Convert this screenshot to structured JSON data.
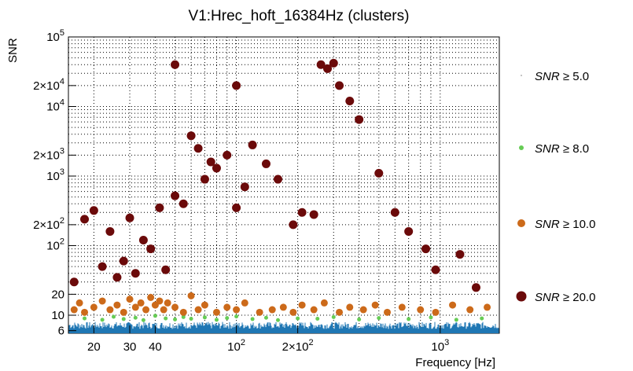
{
  "chart_data": {
    "type": "scatter",
    "title": "V1:Hrec_hoft_16384Hz (clusters)",
    "xlabel": "Frequency [Hz]",
    "ylabel": "SNR",
    "xscale": "log",
    "yscale": "log",
    "xlim": [
      15,
      1950
    ],
    "ylim": [
      5.5,
      100000
    ],
    "grid": true,
    "legend_position": "right",
    "x_ticks": [
      {
        "value": 20,
        "label": "20"
      },
      {
        "value": 30,
        "label": "30"
      },
      {
        "value": 40,
        "label": "40"
      },
      {
        "value": 100,
        "label": "10",
        "exp": "2"
      },
      {
        "value": 200,
        "label": "2×10",
        "exp": "2"
      },
      {
        "value": 1000,
        "label": "10",
        "exp": "3"
      }
    ],
    "y_ticks": [
      {
        "value": 6,
        "label": "6"
      },
      {
        "value": 10,
        "label": "10"
      },
      {
        "value": 20,
        "label": "20"
      },
      {
        "value": 100,
        "label": "10",
        "exp": "2"
      },
      {
        "value": 200,
        "label": "2×10",
        "exp": "2"
      },
      {
        "value": 1000,
        "label": "10",
        "exp": "3"
      },
      {
        "value": 2000,
        "label": "2×10",
        "exp": "3"
      },
      {
        "value": 10000,
        "label": "10",
        "exp": "4"
      },
      {
        "value": 20000,
        "label": "2×10",
        "exp": "4"
      },
      {
        "value": 100000,
        "label": "10",
        "exp": "5"
      }
    ],
    "series": [
      {
        "name": "SNR ≥ 5.0",
        "color": "#1f77b4",
        "legend_color": "#ffffff",
        "description_points": "dense band of clusters between SNR 5 and 8 across 15–1950 Hz",
        "band": [
          5.5,
          8.0
        ]
      },
      {
        "name": "SNR ≥ 8.0",
        "color": "#66cc55",
        "x": [
          18,
          22,
          25,
          28,
          32,
          35,
          40,
          45,
          50,
          55,
          60,
          70,
          80,
          90,
          100,
          120,
          140,
          160,
          200,
          250,
          300,
          400,
          500,
          700,
          900,
          1200,
          1600
        ],
        "y": [
          9,
          8.6,
          9.5,
          8.8,
          9.2,
          8.5,
          9.8,
          9,
          8.7,
          9.4,
          8.9,
          9.3,
          8.6,
          9.1,
          9.6,
          8.8,
          9.2,
          8.5,
          9,
          8.9,
          9.4,
          8.7,
          9.1,
          8.8,
          9.3,
          8.6,
          9
        ]
      },
      {
        "name": "SNR ≥ 10.0",
        "color": "#cc6a1a",
        "x": [
          16,
          17,
          18,
          20,
          22,
          24,
          26,
          28,
          30,
          32,
          34,
          36,
          38,
          40,
          42,
          44,
          46,
          50,
          55,
          60,
          65,
          70,
          80,
          90,
          100,
          110,
          130,
          150,
          170,
          190,
          210,
          240,
          270,
          320,
          360,
          420,
          480,
          550,
          650,
          800,
          950,
          1150,
          1400,
          1700
        ],
        "y": [
          12,
          15,
          11,
          13,
          16,
          12,
          14,
          11,
          17,
          13,
          15,
          12,
          18,
          14,
          16,
          12,
          15,
          13,
          11,
          19,
          12,
          14,
          11,
          13,
          12,
          15,
          11,
          12,
          13,
          11,
          14,
          12,
          15,
          11,
          13,
          12,
          14,
          11,
          13,
          12,
          11,
          14,
          12,
          13
        ]
      },
      {
        "name": "SNR ≥ 20.0",
        "color": "#6b0a0a",
        "x": [
          16,
          18,
          20,
          22,
          24,
          26,
          28,
          30,
          32,
          35,
          38,
          42,
          45,
          50,
          50,
          55,
          60,
          65,
          70,
          75,
          80,
          90,
          100,
          100,
          110,
          120,
          140,
          160,
          190,
          210,
          240,
          260,
          280,
          300,
          320,
          360,
          400,
          500,
          600,
          700,
          850,
          950,
          1250,
          1500
        ],
        "y": [
          30,
          240,
          320,
          50,
          160,
          35,
          60,
          250,
          40,
          120,
          90,
          350,
          45,
          40000,
          520,
          400,
          3800,
          2500,
          900,
          1600,
          1300,
          2000,
          20000,
          350,
          700,
          2800,
          1500,
          900,
          200,
          300,
          280,
          40000,
          35000,
          42000,
          20000,
          12000,
          6500,
          1100,
          300,
          160,
          90,
          45,
          75,
          25
        ]
      }
    ]
  },
  "legend": {
    "entries": [
      {
        "label": "SNR",
        "suffix": "≥ 5.0",
        "color": "#ffffff"
      },
      {
        "label": "SNR",
        "suffix": "≥ 8.0",
        "color": "#66cc55"
      },
      {
        "label": "SNR",
        "suffix": "≥ 10.0",
        "color": "#cc6a1a"
      },
      {
        "label": "SNR",
        "suffix": "≥ 20.0",
        "color": "#6b0a0a"
      }
    ]
  }
}
